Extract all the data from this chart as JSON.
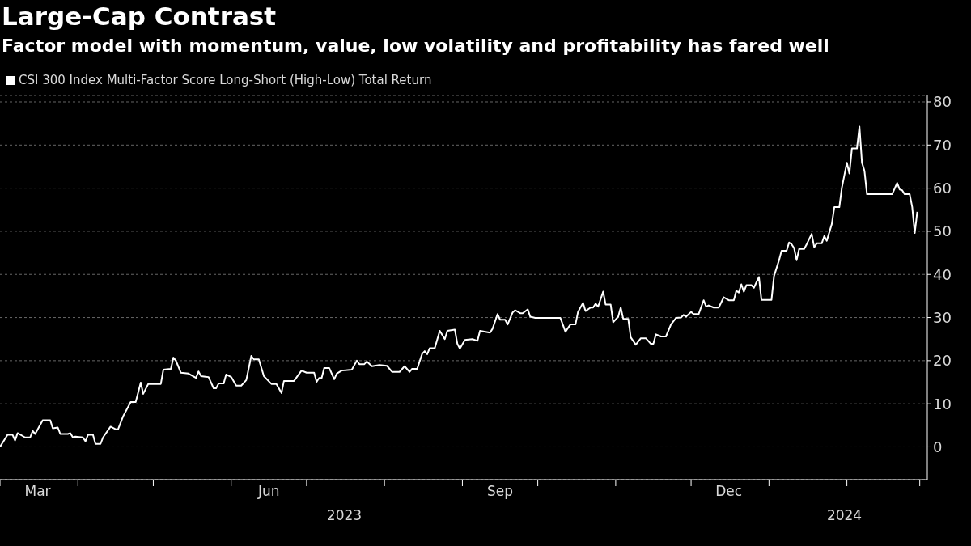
{
  "chart_data": {
    "type": "line",
    "title": "Large-Cap Contrast",
    "subtitle": "Factor model with momentum, value, low volatility and profitability has fared well",
    "x": [
      "2023-03-01",
      "2023-03-04",
      "2023-03-06",
      "2023-03-07",
      "2023-03-08",
      "2023-03-11",
      "2023-03-13",
      "2023-03-14",
      "2023-03-15",
      "2023-03-18",
      "2023-03-21",
      "2023-03-22",
      "2023-03-24",
      "2023-03-25",
      "2023-03-28",
      "2023-03-29",
      "2023-03-30",
      "2023-03-31",
      "2023-04-03",
      "2023-04-04",
      "2023-04-05",
      "2023-04-07",
      "2023-04-08",
      "2023-04-10",
      "2023-04-11",
      "2023-04-14",
      "2023-04-16",
      "2023-04-17",
      "2023-04-19",
      "2023-04-22",
      "2023-04-24",
      "2023-04-26",
      "2023-04-27",
      "2023-04-29",
      "2023-05-04",
      "2023-05-05",
      "2023-05-08",
      "2023-05-09",
      "2023-05-10",
      "2023-05-12",
      "2023-05-15",
      "2023-05-18",
      "2023-05-19",
      "2023-05-20",
      "2023-05-23",
      "2023-05-25",
      "2023-05-26",
      "2023-05-27",
      "2023-05-29",
      "2023-05-30",
      "2023-06-01",
      "2023-06-03",
      "2023-06-05",
      "2023-06-07",
      "2023-06-09",
      "2023-06-10",
      "2023-06-12",
      "2023-06-14",
      "2023-06-17",
      "2023-06-19",
      "2023-06-21",
      "2023-06-22",
      "2023-06-26",
      "2023-06-29",
      "2023-07-01",
      "2023-07-04",
      "2023-07-05",
      "2023-07-06",
      "2023-07-07",
      "2023-07-08",
      "2023-07-10",
      "2023-07-12",
      "2023-07-13",
      "2023-07-15",
      "2023-07-19",
      "2023-07-21",
      "2023-07-22",
      "2023-07-24",
      "2023-07-25",
      "2023-07-27",
      "2023-07-30",
      "2023-08-02",
      "2023-08-04",
      "2023-08-07",
      "2023-08-09",
      "2023-08-11",
      "2023-08-12",
      "2023-08-14",
      "2023-08-16",
      "2023-08-17",
      "2023-08-18",
      "2023-08-19",
      "2023-08-21",
      "2023-08-23",
      "2023-08-25",
      "2023-08-26",
      "2023-08-29",
      "2023-08-30",
      "2023-08-31",
      "2023-09-02",
      "2023-09-05",
      "2023-09-07",
      "2023-09-08",
      "2023-09-12",
      "2023-09-13",
      "2023-09-15",
      "2023-09-16",
      "2023-09-18",
      "2023-09-19",
      "2023-09-21",
      "2023-09-22",
      "2023-09-24",
      "2023-09-25",
      "2023-09-27",
      "2023-09-28",
      "2023-09-30",
      "2023-10-10",
      "2023-10-12",
      "2023-10-14",
      "2023-10-16",
      "2023-10-17",
      "2023-10-19",
      "2023-10-20",
      "2023-10-22",
      "2023-10-23",
      "2023-10-24",
      "2023-10-25",
      "2023-10-27",
      "2023-10-28",
      "2023-10-30",
      "2023-10-31",
      "2023-11-02",
      "2023-11-03",
      "2023-11-04",
      "2023-11-06",
      "2023-11-07",
      "2023-11-09",
      "2023-11-11",
      "2023-11-13",
      "2023-11-15",
      "2023-11-16",
      "2023-11-17",
      "2023-11-19",
      "2023-11-21",
      "2023-11-23",
      "2023-11-25",
      "2023-11-27",
      "2023-11-28",
      "2023-11-29",
      "2023-12-01",
      "2023-12-02",
      "2023-12-04",
      "2023-12-06",
      "2023-12-07",
      "2023-12-08",
      "2023-12-10",
      "2023-12-12",
      "2023-12-14",
      "2023-12-16",
      "2023-12-18",
      "2023-12-19",
      "2023-12-20",
      "2023-12-21",
      "2023-12-22",
      "2023-12-23",
      "2023-12-25",
      "2023-12-26",
      "2023-12-28",
      "2023-12-29",
      "2024-01-02",
      "2024-01-03",
      "2024-01-05",
      "2024-01-06",
      "2024-01-08",
      "2024-01-09",
      "2024-01-10",
      "2024-01-11",
      "2024-01-12",
      "2024-01-13",
      "2024-01-15",
      "2024-01-16",
      "2024-01-18",
      "2024-01-19",
      "2024-01-20",
      "2024-01-22",
      "2024-01-23",
      "2024-01-24",
      "2024-01-26",
      "2024-01-27",
      "2024-01-29",
      "2024-01-30",
      "2024-02-01",
      "2024-02-02",
      "2024-02-03",
      "2024-02-05",
      "2024-02-06",
      "2024-02-07",
      "2024-02-08",
      "2024-02-09",
      "2024-02-19",
      "2024-02-21",
      "2024-02-22",
      "2024-02-23",
      "2024-02-24",
      "2024-02-26",
      "2024-02-27",
      "2024-02-28",
      "2024-02-29"
    ],
    "series": [
      {
        "name": "CSI 300 Index Multi-Factor Score Long-Short (High-Low) Total Return",
        "color": "#ffffff",
        "values": [
          0,
          2.8,
          2.8,
          1.5,
          3.2,
          2.2,
          2.2,
          3.7,
          3.0,
          6.2,
          6.2,
          4.3,
          4.5,
          3.0,
          3.0,
          3.2,
          2.2,
          2.4,
          2.2,
          1.3,
          2.8,
          2.8,
          0.7,
          0.7,
          2.2,
          4.7,
          4.1,
          4.1,
          7.1,
          10.4,
          10.4,
          14.9,
          12.3,
          14.6,
          14.6,
          17.9,
          18.1,
          20.7,
          20.0,
          17.2,
          17.0,
          16.0,
          17.5,
          16.4,
          16.2,
          13.6,
          13.6,
          14.7,
          14.7,
          16.8,
          16.2,
          14.2,
          14.2,
          15.5,
          21.1,
          20.3,
          20.3,
          16.4,
          14.6,
          14.6,
          12.5,
          15.3,
          15.3,
          17.7,
          17.2,
          17.2,
          15.1,
          16.0,
          16.0,
          18.3,
          18.3,
          15.7,
          17.0,
          17.7,
          17.9,
          20.0,
          19.2,
          19.2,
          19.8,
          18.7,
          19.0,
          18.8,
          17.4,
          17.4,
          18.7,
          17.4,
          18.1,
          18.1,
          21.6,
          22.2,
          21.5,
          22.9,
          22.9,
          26.9,
          25.0,
          26.9,
          27.2,
          23.9,
          22.8,
          24.8,
          25.0,
          24.6,
          26.9,
          26.5,
          27.4,
          30.8,
          29.5,
          29.5,
          28.4,
          31.2,
          31.7,
          31.0,
          31.0,
          31.9,
          30.2,
          29.9,
          29.9,
          26.7,
          28.4,
          28.4,
          31.3,
          33.4,
          31.5,
          32.3,
          32.3,
          33.2,
          32.5,
          36.0,
          33.0,
          33.0,
          28.9,
          30.2,
          32.3,
          29.7,
          29.7,
          25.4,
          23.7,
          25.2,
          25.2,
          23.9,
          23.9,
          26.1,
          25.6,
          25.6,
          28.4,
          29.9,
          30.0,
          30.6,
          30.2,
          31.3,
          30.8,
          30.8,
          34.0,
          32.5,
          32.8,
          32.3,
          32.3,
          34.7,
          34.0,
          34.0,
          36.2,
          35.8,
          37.7,
          36.0,
          37.5,
          37.5,
          36.9,
          39.4,
          34.1,
          34.1,
          39.6,
          43.3,
          45.5,
          45.5,
          47.4,
          47.0,
          46.1,
          43.3,
          45.9,
          45.9,
          47.0,
          49.4,
          46.3,
          47.2,
          47.2,
          48.9,
          47.8,
          51.7,
          55.6,
          55.6,
          60.1,
          65.9,
          63.4,
          69.2,
          69.2,
          74.3,
          65.9,
          64.0,
          58.6,
          58.6,
          61.2,
          59.7,
          59.5,
          58.6,
          58.6,
          55.6,
          49.6,
          54.5
        ]
      }
    ],
    "xlim": [
      "2023-03-01",
      "2024-03-04"
    ],
    "xticks": [
      {
        "value": "2023-03-01",
        "label": null
      },
      {
        "value": "2023-03-16",
        "label": "Mar"
      },
      {
        "value": "2023-04-01",
        "label": null
      },
      {
        "value": "2023-05-01",
        "label": null
      },
      {
        "value": "2023-06-01",
        "label": null
      },
      {
        "value": "2023-06-16",
        "label": "Jun"
      },
      {
        "value": "2023-07-01",
        "label": null
      },
      {
        "value": "2023-08-01",
        "label": null
      },
      {
        "value": "2023-09-01",
        "label": null
      },
      {
        "value": "2023-09-16",
        "label": "Sep"
      },
      {
        "value": "2023-10-01",
        "label": null
      },
      {
        "value": "2023-11-01",
        "label": null
      },
      {
        "value": "2023-12-01",
        "label": null
      },
      {
        "value": "2023-12-16",
        "label": "Dec"
      },
      {
        "value": "2024-01-01",
        "label": null
      },
      {
        "value": "2024-02-01",
        "label": null
      },
      {
        "value": "2024-03-01",
        "label": null
      }
    ],
    "ylim": [
      -7.6,
      81.5
    ],
    "yticks": [
      0,
      10,
      20,
      30,
      40,
      50,
      60,
      70,
      80
    ],
    "grid": "y",
    "legend": "top left",
    "x2lim": [
      "2023-03-01",
      "2024-03-04"
    ],
    "x2ticks": [
      {
        "value": "2023-07-16",
        "label": "2023"
      },
      {
        "value": "2024-01-31",
        "label": "2024"
      }
    ]
  }
}
